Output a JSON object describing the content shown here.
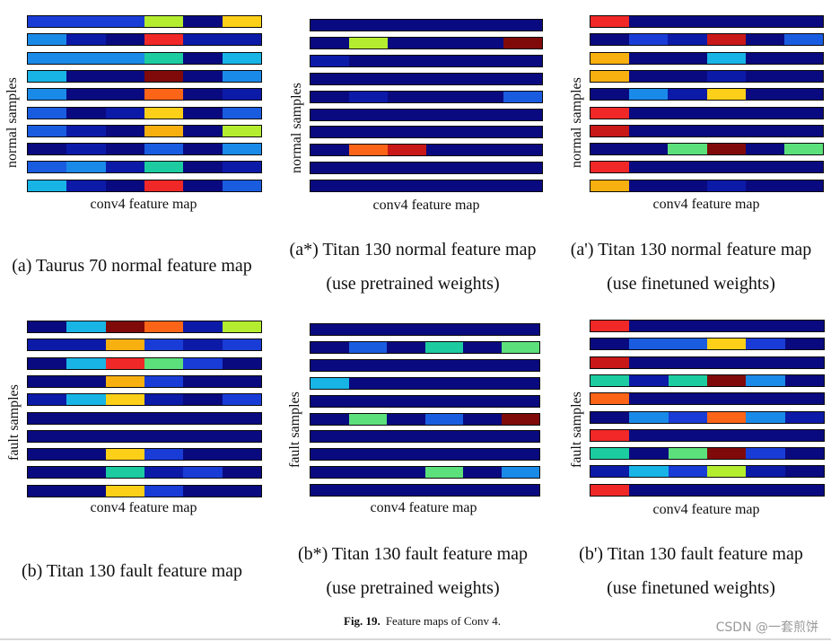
{
  "figure_caption": {
    "label": "Fig. 19.",
    "text": "Feature maps of Conv 4."
  },
  "watermark": "CSDN @一套煎饼",
  "palette": {
    "N": "#0a0a80",
    "D": "#0c1aa8",
    "B": "#1a3cd6",
    "M": "#1a5ce0",
    "L": "#1a8ae8",
    "C": "#18b4e6",
    "T": "#1ccca0",
    "G": "#5ce07c",
    "Y": "#b4ec30",
    "S": "#fcd018",
    "O": "#f8b010",
    "R": "#fc6418",
    "E": "#f02828",
    "K": "#c81818",
    "W": "#800a0a"
  },
  "panels": [
    {
      "id": "a",
      "ylabel": "normal samples",
      "xlabel": "conv4 feature map",
      "caption": [
        "(a) Taurus 70 normal feature map"
      ],
      "rows": [
        "BBBYNS",
        "LDNEDD",
        "LLLTNC",
        "CNNWNL",
        "LNNRND",
        "MNDSNM",
        "MDNONY",
        "NDNMNL",
        "MLDTND",
        "CDNENM"
      ]
    },
    {
      "id": "a_star",
      "ylabel": "normal samples",
      "xlabel": "conv4 feature map",
      "caption": [
        "(a*) Titan 130 normal feature map",
        "(use pretrained weights)"
      ],
      "rows": [
        "NNNNNN",
        "NYNNNW",
        "DNNNNN",
        "NNNNNN",
        "NDNNNM",
        "NNNNNN",
        "NNNNNN",
        "NRKNNN",
        "NNNNNN",
        "NNNNNN"
      ]
    },
    {
      "id": "a_prime",
      "ylabel": "normal samples",
      "xlabel": "conv4 feature map",
      "caption": [
        "(a') Titan 130 normal feature map",
        "(use finetuned weights)"
      ],
      "rows": [
        "ENNNNN",
        "NBDKNM",
        "ONNCNN",
        "ONNDNN",
        "NLDSNN",
        "ENNNNN",
        "KNNNNN",
        "NNGWNG",
        "ENNNNN",
        "ONNDNN"
      ]
    },
    {
      "id": "b",
      "ylabel": "fault samples",
      "xlabel": "conv4 feature map",
      "caption": [
        "(b) Titan 130 fault feature map"
      ],
      "rows": [
        "NCWRDY",
        "DDOBDB",
        "NCEGBN",
        "NNOBNN",
        "DCSDNB",
        "NNNNNN",
        "NNNNNN",
        "NNSBNN",
        "NNTDBN",
        "NNSBNN"
      ]
    },
    {
      "id": "b_star",
      "ylabel": "fault samples",
      "xlabel": "conv4 feature map",
      "caption": [
        "(b*) Titan 130 fault feature map",
        "(use pretrained weights)"
      ],
      "rows": [
        "NNNNNN",
        "NMNTNG",
        "NNNNNN",
        "CNNNNN",
        "NNNNNN",
        "NGNMNW",
        "NNNNNN",
        "NNNNNN",
        "NNNGNL",
        "NNNNNN"
      ]
    },
    {
      "id": "b_prime",
      "ylabel": "fault samples",
      "xlabel": "conv4 feature map",
      "caption": [
        "(b') Titan 130 fault feature map",
        "(use finetuned weights)"
      ],
      "rows": [
        "ENNNNN",
        "NMMSBN",
        "KNNNNN",
        "TDTWLN",
        "RNNNNN",
        "NLBRLD",
        "ENNNNN",
        "TNGWBN",
        "DCBYDN",
        "ENNNNN"
      ]
    }
  ]
}
